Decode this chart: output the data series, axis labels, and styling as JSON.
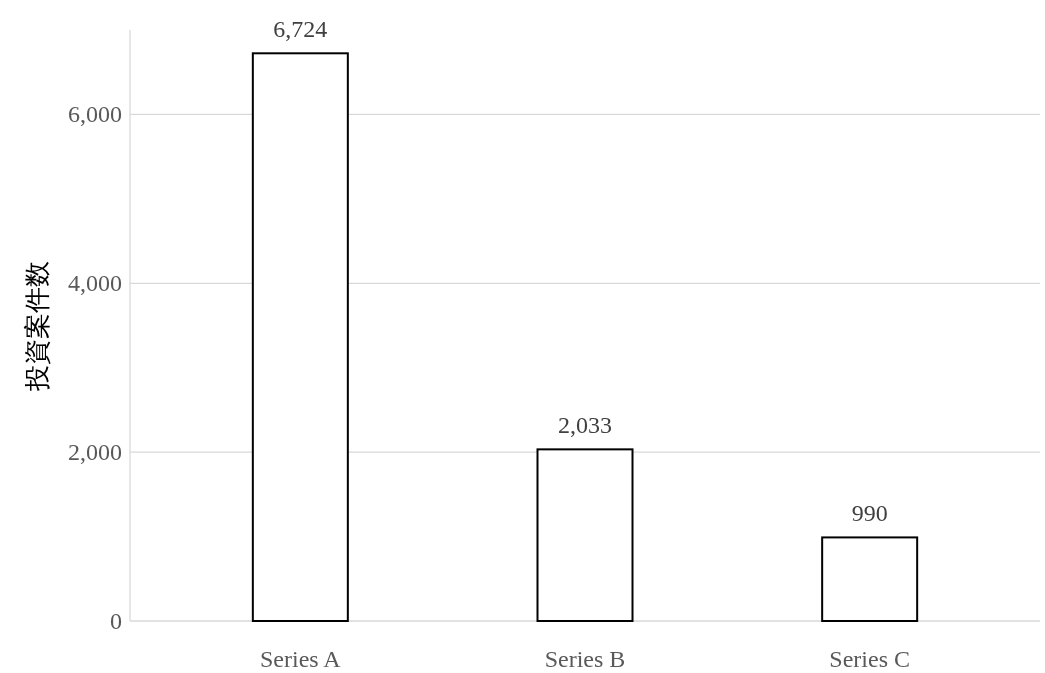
{
  "chart_data": {
    "type": "bar",
    "ylabel": "投資案件数",
    "categories": [
      "Series A",
      "Series B",
      "Series C"
    ],
    "values": [
      6724,
      2033,
      990
    ],
    "value_labels": [
      "6,724",
      "2,033",
      "990"
    ],
    "color": "#ffffff",
    "grid": "y",
    "ylim": [
      0,
      7000
    ],
    "yticks": [
      {
        "value": 0,
        "label": "0"
      },
      {
        "value": 2000,
        "label": "2,000"
      },
      {
        "value": 4000,
        "label": "4,000"
      },
      {
        "value": 6000,
        "label": "6,000"
      }
    ]
  }
}
